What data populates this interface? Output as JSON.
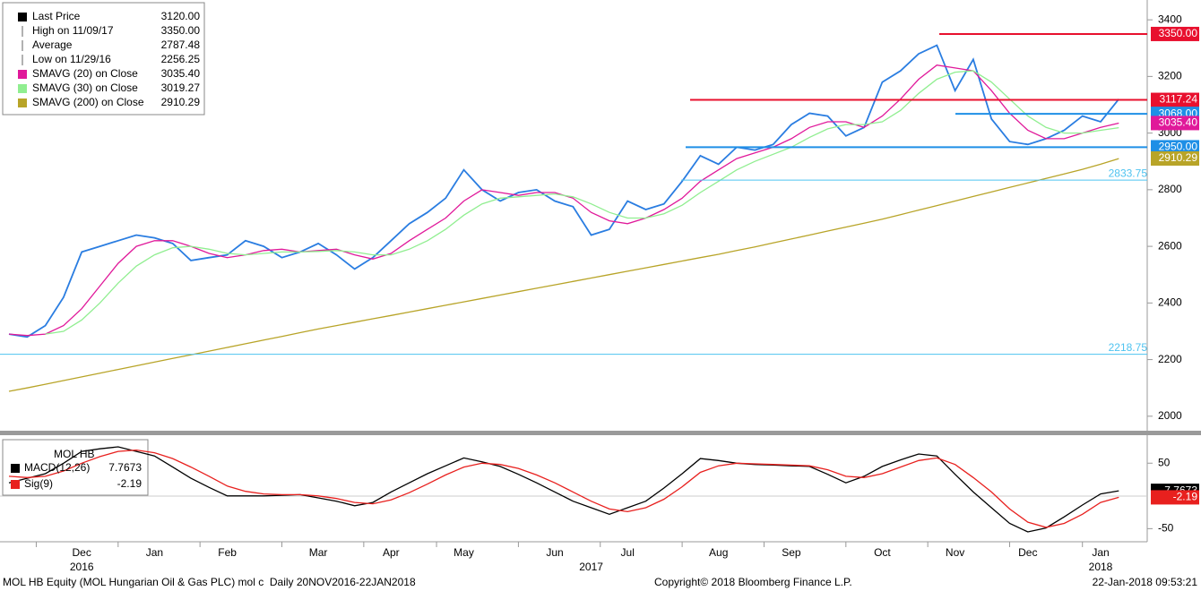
{
  "chart_data": [
    {
      "type": "line",
      "categories": [
        null,
        null,
        null,
        null,
        "Dec",
        null,
        null,
        null,
        "Jan",
        null,
        null,
        null,
        "Feb",
        null,
        null,
        null,
        null,
        "Mar",
        null,
        null,
        null,
        "Apr",
        null,
        null,
        null,
        "May",
        null,
        null,
        null,
        null,
        "Jun",
        null,
        null,
        null,
        "Jul",
        null,
        null,
        null,
        null,
        "Aug",
        null,
        null,
        null,
        "Sep",
        null,
        null,
        null,
        null,
        "Oct",
        null,
        null,
        null,
        "Nov",
        null,
        null,
        null,
        "Dec",
        null,
        null,
        null,
        "Jan",
        null
      ],
      "year_labels": [
        "2016",
        "2017",
        "2018"
      ],
      "series": [
        {
          "name": "Last Price",
          "color": "#2a7de1",
          "legend_value": {
            "value": 3120,
            "label": "3120.00"
          },
          "values": [
            2290,
            2280,
            2320,
            2420,
            2580,
            2600,
            2620,
            2640,
            2630,
            2610,
            2550,
            2560,
            2570,
            2620,
            2600,
            2560,
            2580,
            2610,
            2570,
            2520,
            2560,
            2620,
            2680,
            2720,
            2770,
            2870,
            2800,
            2760,
            2790,
            2800,
            2760,
            2740,
            2640,
            2660,
            2760,
            2730,
            2750,
            2830,
            2920,
            2890,
            2950,
            2940,
            2960,
            3030,
            3070,
            3060,
            2990,
            3020,
            3180,
            3220,
            3280,
            3310,
            3150,
            3260,
            3050,
            2970,
            2960,
            2980,
            3010,
            3060,
            3040,
            3120
          ]
        },
        {
          "name": "SMAVG (20) on Close",
          "color": "#e0199a",
          "legend_value": {
            "value": 3035.4,
            "label": "3035.40"
          },
          "values": [
            2290,
            2285,
            2290,
            2320,
            2380,
            2460,
            2540,
            2600,
            2620,
            2620,
            2600,
            2575,
            2560,
            2570,
            2585,
            2590,
            2580,
            2585,
            2590,
            2570,
            2555,
            2575,
            2620,
            2660,
            2700,
            2760,
            2800,
            2790,
            2780,
            2790,
            2790,
            2770,
            2720,
            2690,
            2680,
            2700,
            2730,
            2770,
            2830,
            2870,
            2910,
            2930,
            2950,
            2980,
            3020,
            3040,
            3040,
            3020,
            3060,
            3120,
            3190,
            3240,
            3230,
            3220,
            3150,
            3070,
            3010,
            2980,
            2980,
            3000,
            3020,
            3035
          ]
        },
        {
          "name": "SMAVG (30) on Close",
          "color": "#90ee90",
          "legend_value": {
            "value": 3019.27,
            "label": "3019.27"
          },
          "values": [
            null,
            null,
            2290,
            2300,
            2340,
            2400,
            2470,
            2530,
            2570,
            2595,
            2600,
            2590,
            2575,
            2570,
            2575,
            2580,
            2580,
            2582,
            2585,
            2580,
            2570,
            2570,
            2590,
            2620,
            2660,
            2710,
            2750,
            2770,
            2775,
            2780,
            2785,
            2775,
            2750,
            2720,
            2700,
            2700,
            2715,
            2745,
            2790,
            2830,
            2870,
            2900,
            2925,
            2950,
            2985,
            3015,
            3030,
            3030,
            3040,
            3080,
            3140,
            3190,
            3215,
            3220,
            3180,
            3120,
            3060,
            3020,
            3000,
            3000,
            3010,
            3019
          ]
        },
        {
          "name": "SMAVG (200) on Close",
          "color": "#b8a428",
          "legend_value": {
            "value": 2910.29,
            "label": "2910.29"
          },
          "values": [
            2088,
            2100,
            2113,
            2126,
            2139,
            2152,
            2165,
            2178,
            2191,
            2204,
            2217,
            2230,
            2243,
            2256,
            2269,
            2282,
            2295,
            2308,
            2320,
            2332,
            2344,
            2356,
            2368,
            2380,
            2392,
            2404,
            2416,
            2428,
            2440,
            2452,
            2464,
            2476,
            2488,
            2500,
            2512,
            2524,
            2536,
            2548,
            2560,
            2572,
            2585,
            2598,
            2612,
            2626,
            2640,
            2654,
            2668,
            2682,
            2696,
            2712,
            2728,
            2744,
            2760,
            2776,
            2792,
            2808,
            2824,
            2840,
            2856,
            2872,
            2890,
            2910
          ]
        }
      ],
      "stats": [
        {
          "name": "High on 11/09/17",
          "value": 3350,
          "label": "3350.00"
        },
        {
          "name": "Average",
          "value": 2787.48,
          "label": "2787.48"
        },
        {
          "name": "Low on 11/29/16",
          "value": 2256.25,
          "label": "2256.25"
        }
      ],
      "reference_lines": [
        {
          "value": 3350,
          "label": "3350.00",
          "color": "#e8102e"
        },
        {
          "value": 3117.24,
          "label": "3117.24",
          "color": "#e8102e"
        },
        {
          "value": 3068,
          "label": "3068.00",
          "color": "#1e8fe6"
        },
        {
          "value": 2950,
          "label": "2950.00",
          "color": "#1e8fe6"
        },
        {
          "value": 2833.75,
          "label": "2833.75",
          "color": "#4ec3f0"
        },
        {
          "value": 2218.75,
          "label": "2218.75",
          "color": "#4ec3f0"
        }
      ],
      "ylim": [
        1952,
        3470
      ],
      "yticks": [
        2000,
        2200,
        2400,
        2600,
        2800,
        3000,
        3200,
        3400
      ]
    },
    {
      "type": "line",
      "title": "MOL HB",
      "series": [
        {
          "name": "MACD(12,26)",
          "color": "#000000",
          "legend_value": {
            "value": 7.7673,
            "label": "7.7673"
          },
          "values": [
            20,
            27,
            34,
            50,
            68,
            72,
            75,
            68,
            61,
            44,
            27,
            13,
            0,
            0,
            0,
            1,
            2,
            -3,
            -8,
            -15,
            -10,
            6,
            20,
            34,
            46,
            58,
            52,
            45,
            33,
            20,
            6,
            -8,
            -18,
            -28,
            -18,
            -8,
            12,
            34,
            57,
            54,
            50,
            48,
            47,
            46,
            45,
            33,
            20,
            30,
            45,
            55,
            64,
            61,
            33,
            6,
            -18,
            -42,
            -55,
            -49,
            -32,
            -14,
            3,
            7.7673
          ]
        },
        {
          "name": "Sig(9)",
          "color": "#e8201e",
          "legend_value": {
            "value": -2.19,
            "label": "-2.19"
          },
          "values": [
            30,
            28,
            30,
            38,
            50,
            60,
            68,
            70,
            66,
            57,
            44,
            30,
            15,
            7,
            3,
            2,
            2,
            0,
            -4,
            -10,
            -12,
            -6,
            5,
            18,
            32,
            44,
            50,
            48,
            42,
            32,
            20,
            6,
            -8,
            -20,
            -24,
            -18,
            -5,
            14,
            36,
            46,
            50,
            49,
            48,
            47,
            46,
            40,
            30,
            28,
            34,
            44,
            54,
            58,
            48,
            28,
            6,
            -20,
            -40,
            -48,
            -42,
            -28,
            -10,
            -2.19
          ]
        }
      ],
      "ylim": [
        -70,
        90
      ],
      "yticks": [
        -50,
        50
      ]
    }
  ],
  "footer": {
    "left": "MOL HB Equity (MOL Hungarian Oil & Gas PLC) mol c  Daily 20NOV2016-22JAN2018",
    "center": "Copyright© 2018 Bloomberg Finance L.P.",
    "right": "22-Jan-2018 09:53:21"
  }
}
